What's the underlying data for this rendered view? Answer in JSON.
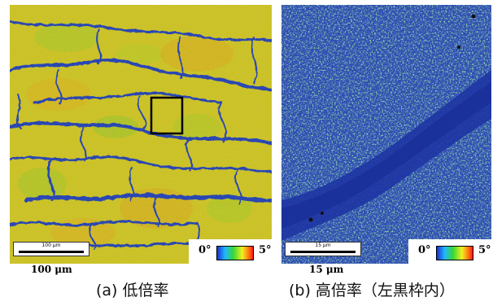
{
  "panels": [
    {
      "id": "a",
      "caption": "(a) 低倍率",
      "scale_box_text": "100 µm",
      "scale_label": "100 μm",
      "legend": {
        "min": "0°",
        "max": "5°"
      }
    },
    {
      "id": "b",
      "caption": "(b) 高倍率（左黒枠内）",
      "scale_box_text": "15 µm",
      "scale_label": "15 μm",
      "legend": {
        "min": "0°",
        "max": "5°"
      }
    }
  ],
  "colors": {
    "grain_yellow": "#c8c21f",
    "grain_green": "#8fc42a",
    "grain_orange": "#d9a21d",
    "boundary_blue": "#2a46b3",
    "fine_blue": "#1f3aa8",
    "fine_green": "#4fb06a",
    "highlight_box": "#000000"
  }
}
